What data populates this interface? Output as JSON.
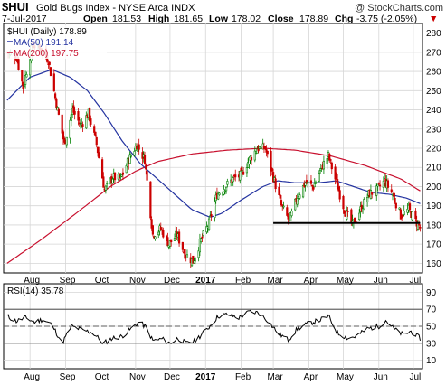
{
  "header": {
    "symbol": "$HUI",
    "name": "Gold Bugs Index - NYSE Arca INDX",
    "watermark": "@ StockCharts.com",
    "date": "7-Jul-2017",
    "open_label": "Open",
    "open": "181.53",
    "high_label": "High",
    "high": "181.65",
    "low_label": "Low",
    "low": "178.02",
    "close_label": "Close",
    "close": "178.89",
    "chg_label": "Chg",
    "chg": "-3.75 (-2.05%)",
    "chg_arrow": "▼"
  },
  "legend": {
    "price": "$HUI (Daily) 178.89",
    "ma50": "MA(50) 191.14",
    "ma200": "MA(200) 197.75",
    "rsi": "RSI(14) 35.78"
  },
  "colors": {
    "up": "#008000",
    "down": "#cc0000",
    "ma50": "#2433a0",
    "ma200": "#c8102e",
    "support": "#000000",
    "grid": "#d6d6d6"
  },
  "chart_data": [
    {
      "type": "candlestick",
      "title": "Gold Bugs Index - NYSE Arca INDX",
      "ylim": [
        155,
        285
      ],
      "y_ticks": [
        160,
        170,
        180,
        190,
        200,
        210,
        220,
        230,
        240,
        250,
        260,
        270,
        280
      ],
      "x_ticks": [
        "Aug",
        "Sep",
        "Oct",
        "Nov",
        "Dec",
        "2017",
        "Feb",
        "Mar",
        "Apr",
        "May",
        "Jun",
        "Jul"
      ],
      "grid": true,
      "legend_position": "top-left",
      "price_anchors": [
        {
          "d": "2016-07-12",
          "v": 270
        },
        {
          "d": "2016-07-20",
          "v": 268
        },
        {
          "d": "2016-07-26",
          "v": 252
        },
        {
          "d": "2016-08-03",
          "v": 274
        },
        {
          "d": "2016-08-10",
          "v": 272
        },
        {
          "d": "2016-08-17",
          "v": 266
        },
        {
          "d": "2016-08-24",
          "v": 243
        },
        {
          "d": "2016-08-31",
          "v": 222
        },
        {
          "d": "2016-09-07",
          "v": 240
        },
        {
          "d": "2016-09-14",
          "v": 232
        },
        {
          "d": "2016-09-21",
          "v": 238
        },
        {
          "d": "2016-09-28",
          "v": 222
        },
        {
          "d": "2016-10-05",
          "v": 198
        },
        {
          "d": "2016-10-12",
          "v": 205
        },
        {
          "d": "2016-10-19",
          "v": 204
        },
        {
          "d": "2016-10-26",
          "v": 214
        },
        {
          "d": "2016-11-02",
          "v": 222
        },
        {
          "d": "2016-11-09",
          "v": 214
        },
        {
          "d": "2016-11-16",
          "v": 175
        },
        {
          "d": "2016-11-23",
          "v": 178
        },
        {
          "d": "2016-11-30",
          "v": 170
        },
        {
          "d": "2016-12-07",
          "v": 175
        },
        {
          "d": "2016-12-14",
          "v": 165
        },
        {
          "d": "2016-12-21",
          "v": 161
        },
        {
          "d": "2016-12-28",
          "v": 172
        },
        {
          "d": "2017-01-04",
          "v": 181
        },
        {
          "d": "2017-01-11",
          "v": 196
        },
        {
          "d": "2017-01-18",
          "v": 200
        },
        {
          "d": "2017-01-25",
          "v": 204
        },
        {
          "d": "2017-02-01",
          "v": 206
        },
        {
          "d": "2017-02-08",
          "v": 214
        },
        {
          "d": "2017-02-15",
          "v": 220
        },
        {
          "d": "2017-02-22",
          "v": 220
        },
        {
          "d": "2017-03-01",
          "v": 205
        },
        {
          "d": "2017-03-08",
          "v": 190
        },
        {
          "d": "2017-03-15",
          "v": 182
        },
        {
          "d": "2017-03-22",
          "v": 195
        },
        {
          "d": "2017-03-29",
          "v": 202
        },
        {
          "d": "2017-04-05",
          "v": 200
        },
        {
          "d": "2017-04-12",
          "v": 210
        },
        {
          "d": "2017-04-18",
          "v": 216
        },
        {
          "d": "2017-04-25",
          "v": 202
        },
        {
          "d": "2017-05-02",
          "v": 188
        },
        {
          "d": "2017-05-09",
          "v": 180
        },
        {
          "d": "2017-05-16",
          "v": 188
        },
        {
          "d": "2017-05-23",
          "v": 196
        },
        {
          "d": "2017-05-30",
          "v": 198
        },
        {
          "d": "2017-06-06",
          "v": 203
        },
        {
          "d": "2017-06-13",
          "v": 196
        },
        {
          "d": "2017-06-20",
          "v": 185
        },
        {
          "d": "2017-06-27",
          "v": 188
        },
        {
          "d": "2017-07-03",
          "v": 182
        },
        {
          "d": "2017-07-07",
          "v": 178.89
        }
      ],
      "ma50_anchors": [
        {
          "d": "2016-07-12",
          "v": 245
        },
        {
          "d": "2016-08-01",
          "v": 257
        },
        {
          "d": "2016-08-20",
          "v": 261
        },
        {
          "d": "2016-09-05",
          "v": 257
        },
        {
          "d": "2016-09-20",
          "v": 250
        },
        {
          "d": "2016-10-05",
          "v": 238
        },
        {
          "d": "2016-10-20",
          "v": 224
        },
        {
          "d": "2016-11-05",
          "v": 212
        },
        {
          "d": "2016-11-20",
          "v": 204
        },
        {
          "d": "2016-12-05",
          "v": 196
        },
        {
          "d": "2016-12-20",
          "v": 188
        },
        {
          "d": "2017-01-05",
          "v": 184
        },
        {
          "d": "2017-01-15",
          "v": 186
        },
        {
          "d": "2017-02-01",
          "v": 193
        },
        {
          "d": "2017-02-20",
          "v": 200
        },
        {
          "d": "2017-03-05",
          "v": 203
        },
        {
          "d": "2017-03-20",
          "v": 202
        },
        {
          "d": "2017-04-10",
          "v": 202
        },
        {
          "d": "2017-04-25",
          "v": 203
        },
        {
          "d": "2017-05-10",
          "v": 200
        },
        {
          "d": "2017-05-25",
          "v": 197
        },
        {
          "d": "2017-06-10",
          "v": 196
        },
        {
          "d": "2017-06-25",
          "v": 194
        },
        {
          "d": "2017-07-07",
          "v": 191.14
        }
      ],
      "ma200_anchors": [
        {
          "d": "2016-07-12",
          "v": 160
        },
        {
          "d": "2016-08-10",
          "v": 172
        },
        {
          "d": "2016-09-10",
          "v": 186
        },
        {
          "d": "2016-10-10",
          "v": 200
        },
        {
          "d": "2016-11-01",
          "v": 208
        },
        {
          "d": "2016-11-20",
          "v": 213
        },
        {
          "d": "2016-12-20",
          "v": 217
        },
        {
          "d": "2017-01-20",
          "v": 219
        },
        {
          "d": "2017-02-20",
          "v": 220
        },
        {
          "d": "2017-03-20",
          "v": 219
        },
        {
          "d": "2017-04-20",
          "v": 216
        },
        {
          "d": "2017-05-20",
          "v": 211
        },
        {
          "d": "2017-06-20",
          "v": 204
        },
        {
          "d": "2017-07-07",
          "v": 197.75
        }
      ],
      "support_line": {
        "from": "2017-03-01",
        "to": "2017-07-07",
        "value": 181
      },
      "series": [
        {
          "name": "$HUI (Daily)",
          "role": "price"
        },
        {
          "name": "MA(50)",
          "role": "ma50"
        },
        {
          "name": "MA(200)",
          "role": "ma200"
        }
      ]
    },
    {
      "type": "line",
      "title": "RSI(14)",
      "ylim": [
        0,
        100
      ],
      "y_ticks": [
        10,
        30,
        50,
        70,
        90
      ],
      "reference_lines": [
        30,
        50,
        70
      ],
      "x_ticks": [
        "Aug",
        "Sep",
        "Oct",
        "Nov",
        "Dec",
        "2017",
        "Feb",
        "Mar",
        "Apr",
        "May",
        "Jun",
        "Jul"
      ],
      "rsi_anchors": [
        {
          "d": "2016-07-12",
          "v": 62
        },
        {
          "d": "2016-07-20",
          "v": 56
        },
        {
          "d": "2016-07-28",
          "v": 60
        },
        {
          "d": "2016-08-05",
          "v": 55
        },
        {
          "d": "2016-08-12",
          "v": 58
        },
        {
          "d": "2016-08-20",
          "v": 52
        },
        {
          "d": "2016-08-29",
          "v": 30
        },
        {
          "d": "2016-09-06",
          "v": 50
        },
        {
          "d": "2016-09-15",
          "v": 46
        },
        {
          "d": "2016-09-25",
          "v": 42
        },
        {
          "d": "2016-10-04",
          "v": 30
        },
        {
          "d": "2016-10-12",
          "v": 36
        },
        {
          "d": "2016-10-20",
          "v": 38
        },
        {
          "d": "2016-10-28",
          "v": 47
        },
        {
          "d": "2016-11-04",
          "v": 55
        },
        {
          "d": "2016-11-10",
          "v": 49
        },
        {
          "d": "2016-11-16",
          "v": 33
        },
        {
          "d": "2016-11-24",
          "v": 35
        },
        {
          "d": "2016-12-01",
          "v": 30
        },
        {
          "d": "2016-12-08",
          "v": 36
        },
        {
          "d": "2016-12-15",
          "v": 30
        },
        {
          "d": "2016-12-22",
          "v": 32
        },
        {
          "d": "2017-01-02",
          "v": 46
        },
        {
          "d": "2017-01-12",
          "v": 62
        },
        {
          "d": "2017-01-20",
          "v": 64
        },
        {
          "d": "2017-01-30",
          "v": 60
        },
        {
          "d": "2017-02-08",
          "v": 67
        },
        {
          "d": "2017-02-16",
          "v": 66
        },
        {
          "d": "2017-02-24",
          "v": 57
        },
        {
          "d": "2017-03-05",
          "v": 42
        },
        {
          "d": "2017-03-14",
          "v": 34
        },
        {
          "d": "2017-03-22",
          "v": 47
        },
        {
          "d": "2017-03-31",
          "v": 53
        },
        {
          "d": "2017-04-10",
          "v": 57
        },
        {
          "d": "2017-04-18",
          "v": 62
        },
        {
          "d": "2017-04-26",
          "v": 42
        },
        {
          "d": "2017-05-05",
          "v": 36
        },
        {
          "d": "2017-05-12",
          "v": 38
        },
        {
          "d": "2017-05-22",
          "v": 47
        },
        {
          "d": "2017-06-01",
          "v": 50
        },
        {
          "d": "2017-06-07",
          "v": 57
        },
        {
          "d": "2017-06-15",
          "v": 46
        },
        {
          "d": "2017-06-22",
          "v": 40
        },
        {
          "d": "2017-06-29",
          "v": 44
        },
        {
          "d": "2017-07-07",
          "v": 35.78
        }
      ]
    }
  ]
}
